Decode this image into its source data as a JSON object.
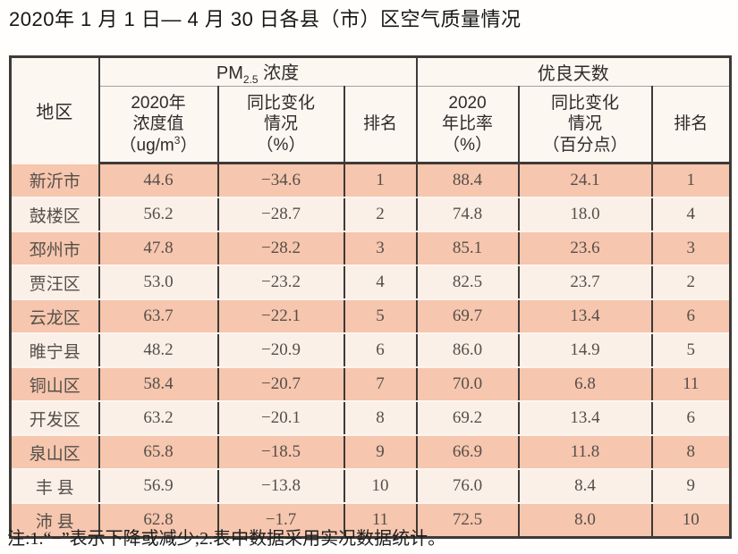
{
  "title": "2020年 1 月 1 日— 4 月 30 日各县（市）区空气质量情况",
  "table": {
    "region_header": "地区",
    "group_pm25": {
      "prefix": "PM",
      "sub": "2.5",
      "suffix": " 浓度"
    },
    "group_days": "优良天数",
    "col_conc": {
      "line1": "2020年",
      "line2": "浓度值",
      "line3_pre": "（ug/m",
      "line3_sup": "3",
      "line3_post": "）"
    },
    "col_change_pm": {
      "line1": "同比变化",
      "line2": "情况",
      "line3": "（%）"
    },
    "col_rank_pm": "排名",
    "col_rate": {
      "line1": "2020",
      "line2": "年比率",
      "line3": "（%）"
    },
    "col_change_days": {
      "line1": "同比变化",
      "line2": "情况",
      "line3": "（百分点）"
    },
    "col_rank_days": "排名",
    "rows": [
      {
        "region": "新沂市",
        "conc": "44.6",
        "change_pm": "−34.6",
        "rank_pm": "1",
        "rate": "88.4",
        "change_days": "24.1",
        "rank_days": "1"
      },
      {
        "region": "鼓楼区",
        "conc": "56.2",
        "change_pm": "−28.7",
        "rank_pm": "2",
        "rate": "74.8",
        "change_days": "18.0",
        "rank_days": "4"
      },
      {
        "region": "邳州市",
        "conc": "47.8",
        "change_pm": "−28.2",
        "rank_pm": "3",
        "rate": "85.1",
        "change_days": "23.6",
        "rank_days": "3"
      },
      {
        "region": "贾汪区",
        "conc": "53.0",
        "change_pm": "−23.2",
        "rank_pm": "4",
        "rate": "82.5",
        "change_days": "23.7",
        "rank_days": "2"
      },
      {
        "region": "云龙区",
        "conc": "63.7",
        "change_pm": "−22.1",
        "rank_pm": "5",
        "rate": "69.7",
        "change_days": "13.4",
        "rank_days": "6"
      },
      {
        "region": "睢宁县",
        "conc": "48.2",
        "change_pm": "−20.9",
        "rank_pm": "6",
        "rate": "86.0",
        "change_days": "14.9",
        "rank_days": "5"
      },
      {
        "region": "铜山区",
        "conc": "58.4",
        "change_pm": "−20.7",
        "rank_pm": "7",
        "rate": "70.0",
        "change_days": "6.8",
        "rank_days": "11"
      },
      {
        "region": "开发区",
        "conc": "63.2",
        "change_pm": "−20.1",
        "rank_pm": "8",
        "rate": "69.2",
        "change_days": "13.4",
        "rank_days": "6"
      },
      {
        "region": "泉山区",
        "conc": "65.8",
        "change_pm": "−18.5",
        "rank_pm": "9",
        "rate": "66.9",
        "change_days": "11.8",
        "rank_days": "8"
      },
      {
        "region": "丰 县",
        "conc": "56.9",
        "change_pm": "−13.8",
        "rank_pm": "10",
        "rate": "76.0",
        "change_days": "8.4",
        "rank_days": "9"
      },
      {
        "region": "沛 县",
        "conc": "62.8",
        "change_pm": "−1.7",
        "rank_pm": "11",
        "rate": "72.5",
        "change_days": "8.0",
        "rank_days": "10"
      }
    ]
  },
  "note": "注:1.“−”表示下降或减少;2.表中数据采用实况数据统计。",
  "colors": {
    "row-odd": "#f6c6ae",
    "row-even": "#fbf0e8",
    "header-bg": "#fcf7f1",
    "line-dark": "#3d3a38",
    "line-light": "#fdf4ee",
    "line-group": "#a9a19b",
    "text-dark": "#2e2b29",
    "text-data": "#554f4a"
  }
}
